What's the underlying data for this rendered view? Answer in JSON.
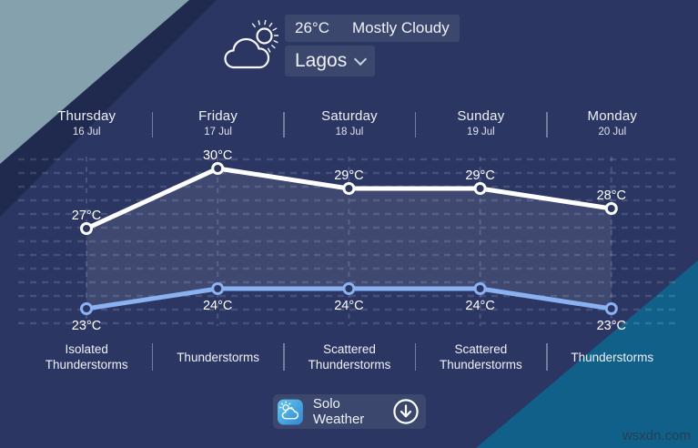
{
  "header": {
    "weather_icon": "cloud-sun-icon",
    "temperature": "26°C",
    "condition": "Mostly Cloudy",
    "city": "Lagos"
  },
  "chart_data": {
    "type": "line",
    "unit": "°C",
    "title": "5-day temperature forecast",
    "grid": "dashed",
    "legend": "none",
    "ylim": [
      22,
      31
    ],
    "days": [
      {
        "name": "Thursday",
        "date": "16 Jul",
        "condition": "Isolated Thunderstorms"
      },
      {
        "name": "Friday",
        "date": "17 Jul",
        "condition": "Thunderstorms"
      },
      {
        "name": "Saturday",
        "date": "18 Jul",
        "condition": "Scattered Thunderstorms"
      },
      {
        "name": "Sunday",
        "date": "19 Jul",
        "condition": "Scattered Thunderstorms"
      },
      {
        "name": "Monday",
        "date": "20 Jul",
        "condition": "Thunderstorms"
      }
    ],
    "series": [
      {
        "name": "high",
        "values": [
          27,
          30,
          29,
          29,
          28
        ],
        "color": "#ffffff",
        "label_position": "above"
      },
      {
        "name": "low",
        "values": [
          23,
          24,
          24,
          24,
          23
        ],
        "color": "#8ab1f2",
        "label_position": "below"
      }
    ]
  },
  "footer": {
    "app_icon": "solo-weather-app-icon",
    "app_name": "Solo Weather",
    "download_icon": "download-circle-icon"
  },
  "watermark": "wsxdn.com",
  "colors": {
    "background": "#2c3663",
    "corner_light": "#85a1ae",
    "corner_dark_band": "#20294e",
    "corner_teal": "#11608a",
    "chip_bg": "#3b476d",
    "line_high": "#ffffff",
    "line_low": "#8ab1f2"
  }
}
